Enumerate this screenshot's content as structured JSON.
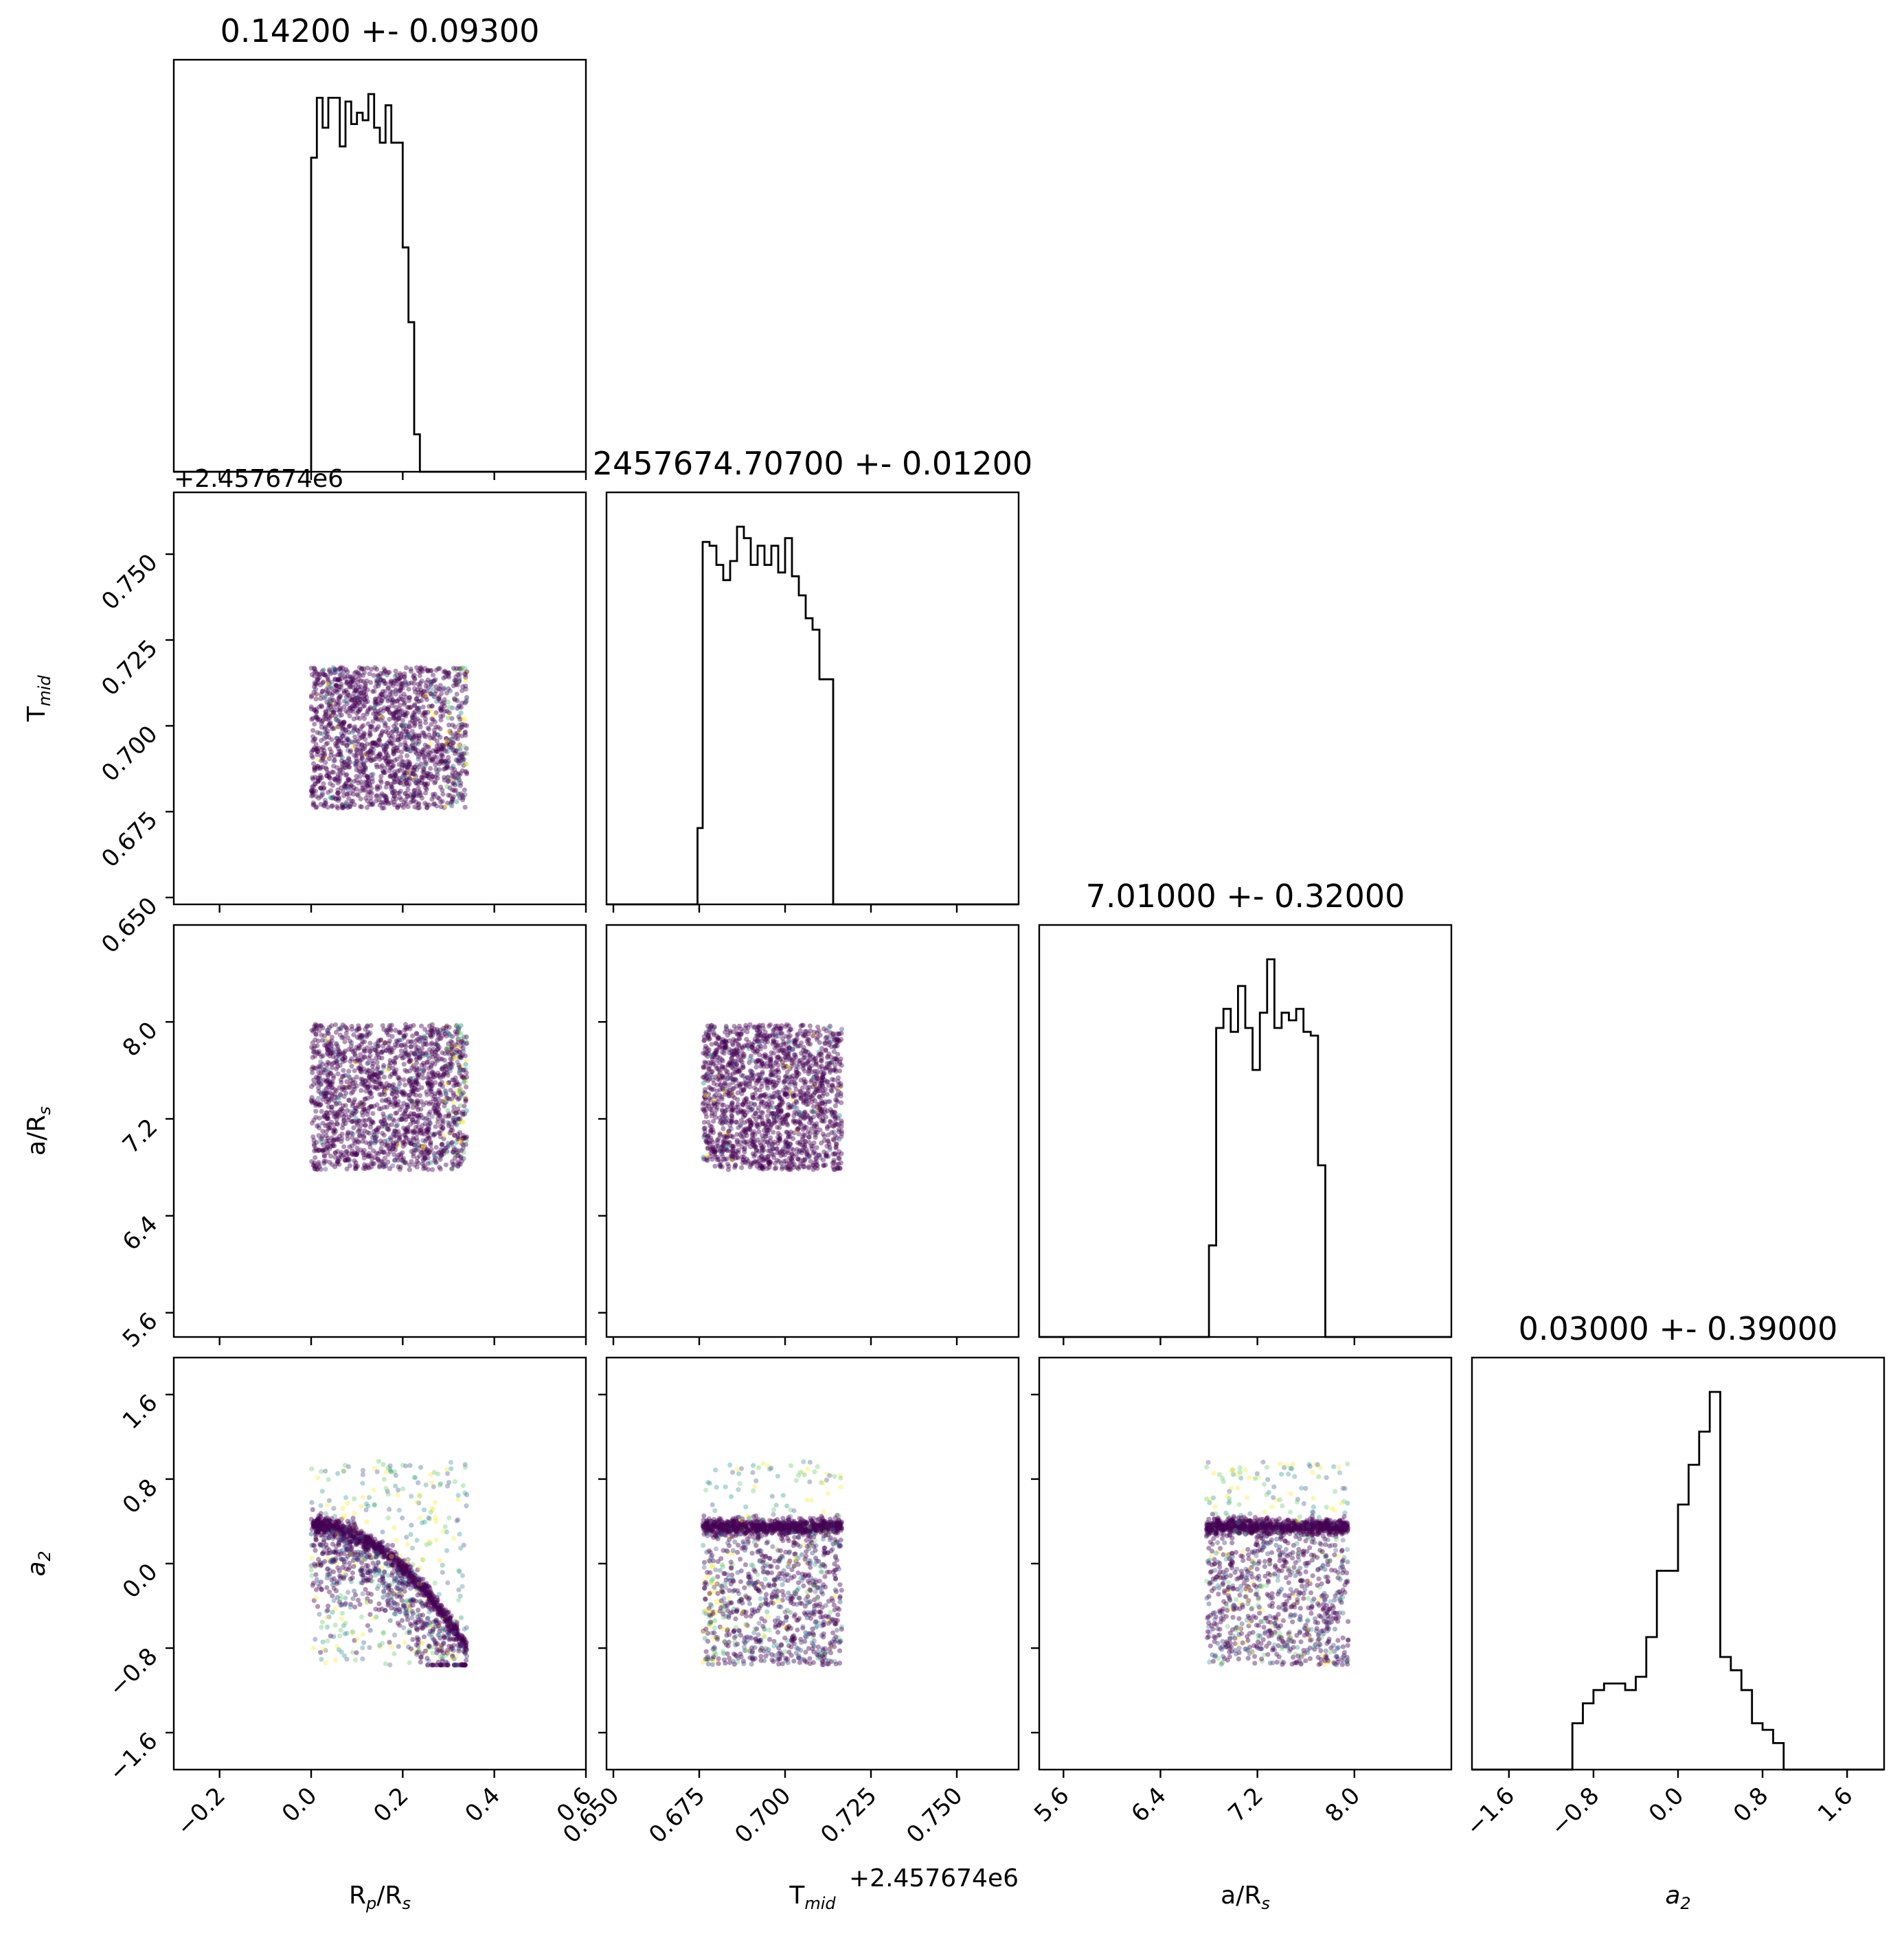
{
  "chart_data": {
    "type": "scatter",
    "subtype": "corner-plot",
    "parameters": [
      {
        "key": "rp",
        "label": "R",
        "label_sub": "p",
        "label_tail": "/R",
        "label_tail_sub": "s",
        "title": "0.14200 +- 0.09300",
        "range": [
          -0.3,
          0.6
        ],
        "ticks": [
          -0.2,
          0.0,
          0.2,
          0.4,
          0.6
        ],
        "tick_labels": [
          "−0.2",
          "0.0",
          "0.2",
          "0.4",
          "0.6"
        ],
        "offset": ""
      },
      {
        "key": "tmid",
        "label": "T",
        "label_sub": "mid",
        "label_tail": "",
        "label_tail_sub": "",
        "title": "2457674.70700 +- 0.01200",
        "range": [
          0.648,
          0.768
        ],
        "ticks": [
          0.65,
          0.675,
          0.7,
          0.725,
          0.75
        ],
        "tick_labels": [
          "0.650",
          "0.675",
          "0.700",
          "0.725",
          "0.750"
        ],
        "offset": "+2.457674e6"
      },
      {
        "key": "ars",
        "label": "a/R",
        "label_sub": "s",
        "label_tail": "",
        "label_tail_sub": "",
        "title": "7.01000 +- 0.32000",
        "range": [
          5.4,
          8.8
        ],
        "ticks": [
          5.6,
          6.4,
          7.2,
          8.0
        ],
        "tick_labels": [
          "5.6",
          "6.4",
          "7.2",
          "8.0"
        ],
        "offset": ""
      },
      {
        "key": "a2",
        "label": "a",
        "label_sub": "2",
        "label_tail": "",
        "label_tail_sub": "",
        "label_italic": true,
        "title": "0.03000 +- 0.39000",
        "range": [
          -1.95,
          1.95
        ],
        "ticks": [
          -1.6,
          -0.8,
          0.0,
          0.8,
          1.6
        ],
        "tick_labels": [
          "−1.6",
          "−0.8",
          "0.0",
          "0.8",
          "1.6"
        ],
        "offset": ""
      }
    ],
    "histograms": [
      {
        "param": "rp",
        "bins": [
          0.0,
          0.0125,
          0.025,
          0.0375,
          0.05,
          0.0625,
          0.075,
          0.0875,
          0.1,
          0.1125,
          0.125,
          0.1375,
          0.15,
          0.1625,
          0.175,
          0.1875,
          0.2,
          0.2125,
          0.225,
          0.2375,
          0.25,
          0.2625,
          0.275,
          0.2875,
          0.3,
          0.3125,
          0.325,
          0.3375,
          0.35
        ],
        "counts": [
          84,
          100,
          92,
          100,
          100,
          87,
          99,
          93,
          96,
          94,
          101,
          92,
          88,
          98,
          88,
          88,
          60,
          40,
          10,
          0,
          0,
          0,
          0,
          0,
          0,
          0,
          0,
          0
        ]
      },
      {
        "param": "tmid",
        "bins": [
          0.6745,
          0.676,
          0.678,
          0.68,
          0.682,
          0.684,
          0.686,
          0.688,
          0.69,
          0.692,
          0.694,
          0.696,
          0.698,
          0.7,
          0.702,
          0.704,
          0.706,
          0.708,
          0.71,
          0.712,
          0.714,
          0.716,
          0.7175
        ],
        "counts": [
          20,
          95,
          94,
          89,
          85,
          90,
          99,
          96,
          89,
          94,
          89,
          94,
          87,
          96,
          86,
          81,
          75,
          72,
          59,
          59,
          0,
          0
        ]
      },
      {
        "param": "ars",
        "bins": [
          6.8,
          6.86,
          6.92,
          6.98,
          7.04,
          7.1,
          7.16,
          7.22,
          7.28,
          7.34,
          7.4,
          7.46,
          7.52,
          7.58,
          7.64,
          7.7,
          7.76,
          7.82,
          7.88,
          7.94
        ],
        "counts": [
          24,
          81,
          86,
          80,
          92,
          81,
          70,
          85,
          99,
          81,
          85,
          83,
          86,
          80,
          79,
          45,
          0,
          0,
          0
        ]
      },
      {
        "param": "a2",
        "bins": [
          -1.0,
          -0.9,
          -0.8,
          -0.7,
          -0.6,
          -0.5,
          -0.4,
          -0.3,
          -0.2,
          -0.1,
          0.0,
          0.1,
          0.2,
          0.3,
          0.4,
          0.5,
          0.6,
          0.7,
          0.8,
          0.9,
          1.0
        ],
        "counts": [
          7,
          10,
          12,
          13,
          13,
          12,
          14,
          20,
          30,
          30,
          40,
          46,
          51,
          57,
          17,
          15,
          12,
          7,
          6,
          4
        ]
      }
    ],
    "scatter_panels": [
      {
        "x": "rp",
        "y": "tmid",
        "x_range": [
          0.0,
          0.34
        ],
        "y_range": [
          0.676,
          0.717
        ]
      },
      {
        "x": "rp",
        "y": "ars",
        "x_range": [
          0.0,
          0.34
        ],
        "y_range": [
          6.78,
          7.98
        ]
      },
      {
        "x": "tmid",
        "y": "ars",
        "x_range": [
          0.676,
          0.7165
        ],
        "y_range": [
          6.78,
          7.98
        ]
      },
      {
        "x": "rp",
        "y": "a2",
        "x_range": [
          0.0,
          0.34
        ],
        "y_range": [
          -0.96,
          0.97
        ],
        "correlation": "a2 ≈ 0.37 − 14·(Rp/Rs)² dense curved ridge"
      },
      {
        "x": "tmid",
        "y": "a2",
        "x_range": [
          0.676,
          0.7165
        ],
        "y_range": [
          -0.96,
          0.97
        ]
      },
      {
        "x": "ars",
        "y": "a2",
        "x_range": [
          6.78,
          7.95
        ],
        "y_range": [
          -0.96,
          0.97
        ]
      }
    ],
    "point_colormap": "viridis",
    "colors": {
      "frame": "#000000",
      "hist_line": "#000000",
      "dense": "#440154",
      "mid": "#3b528b",
      "teal": "#21918c",
      "green": "#5ec962",
      "yellow": "#fde725"
    },
    "grid": false,
    "legend": "none"
  }
}
